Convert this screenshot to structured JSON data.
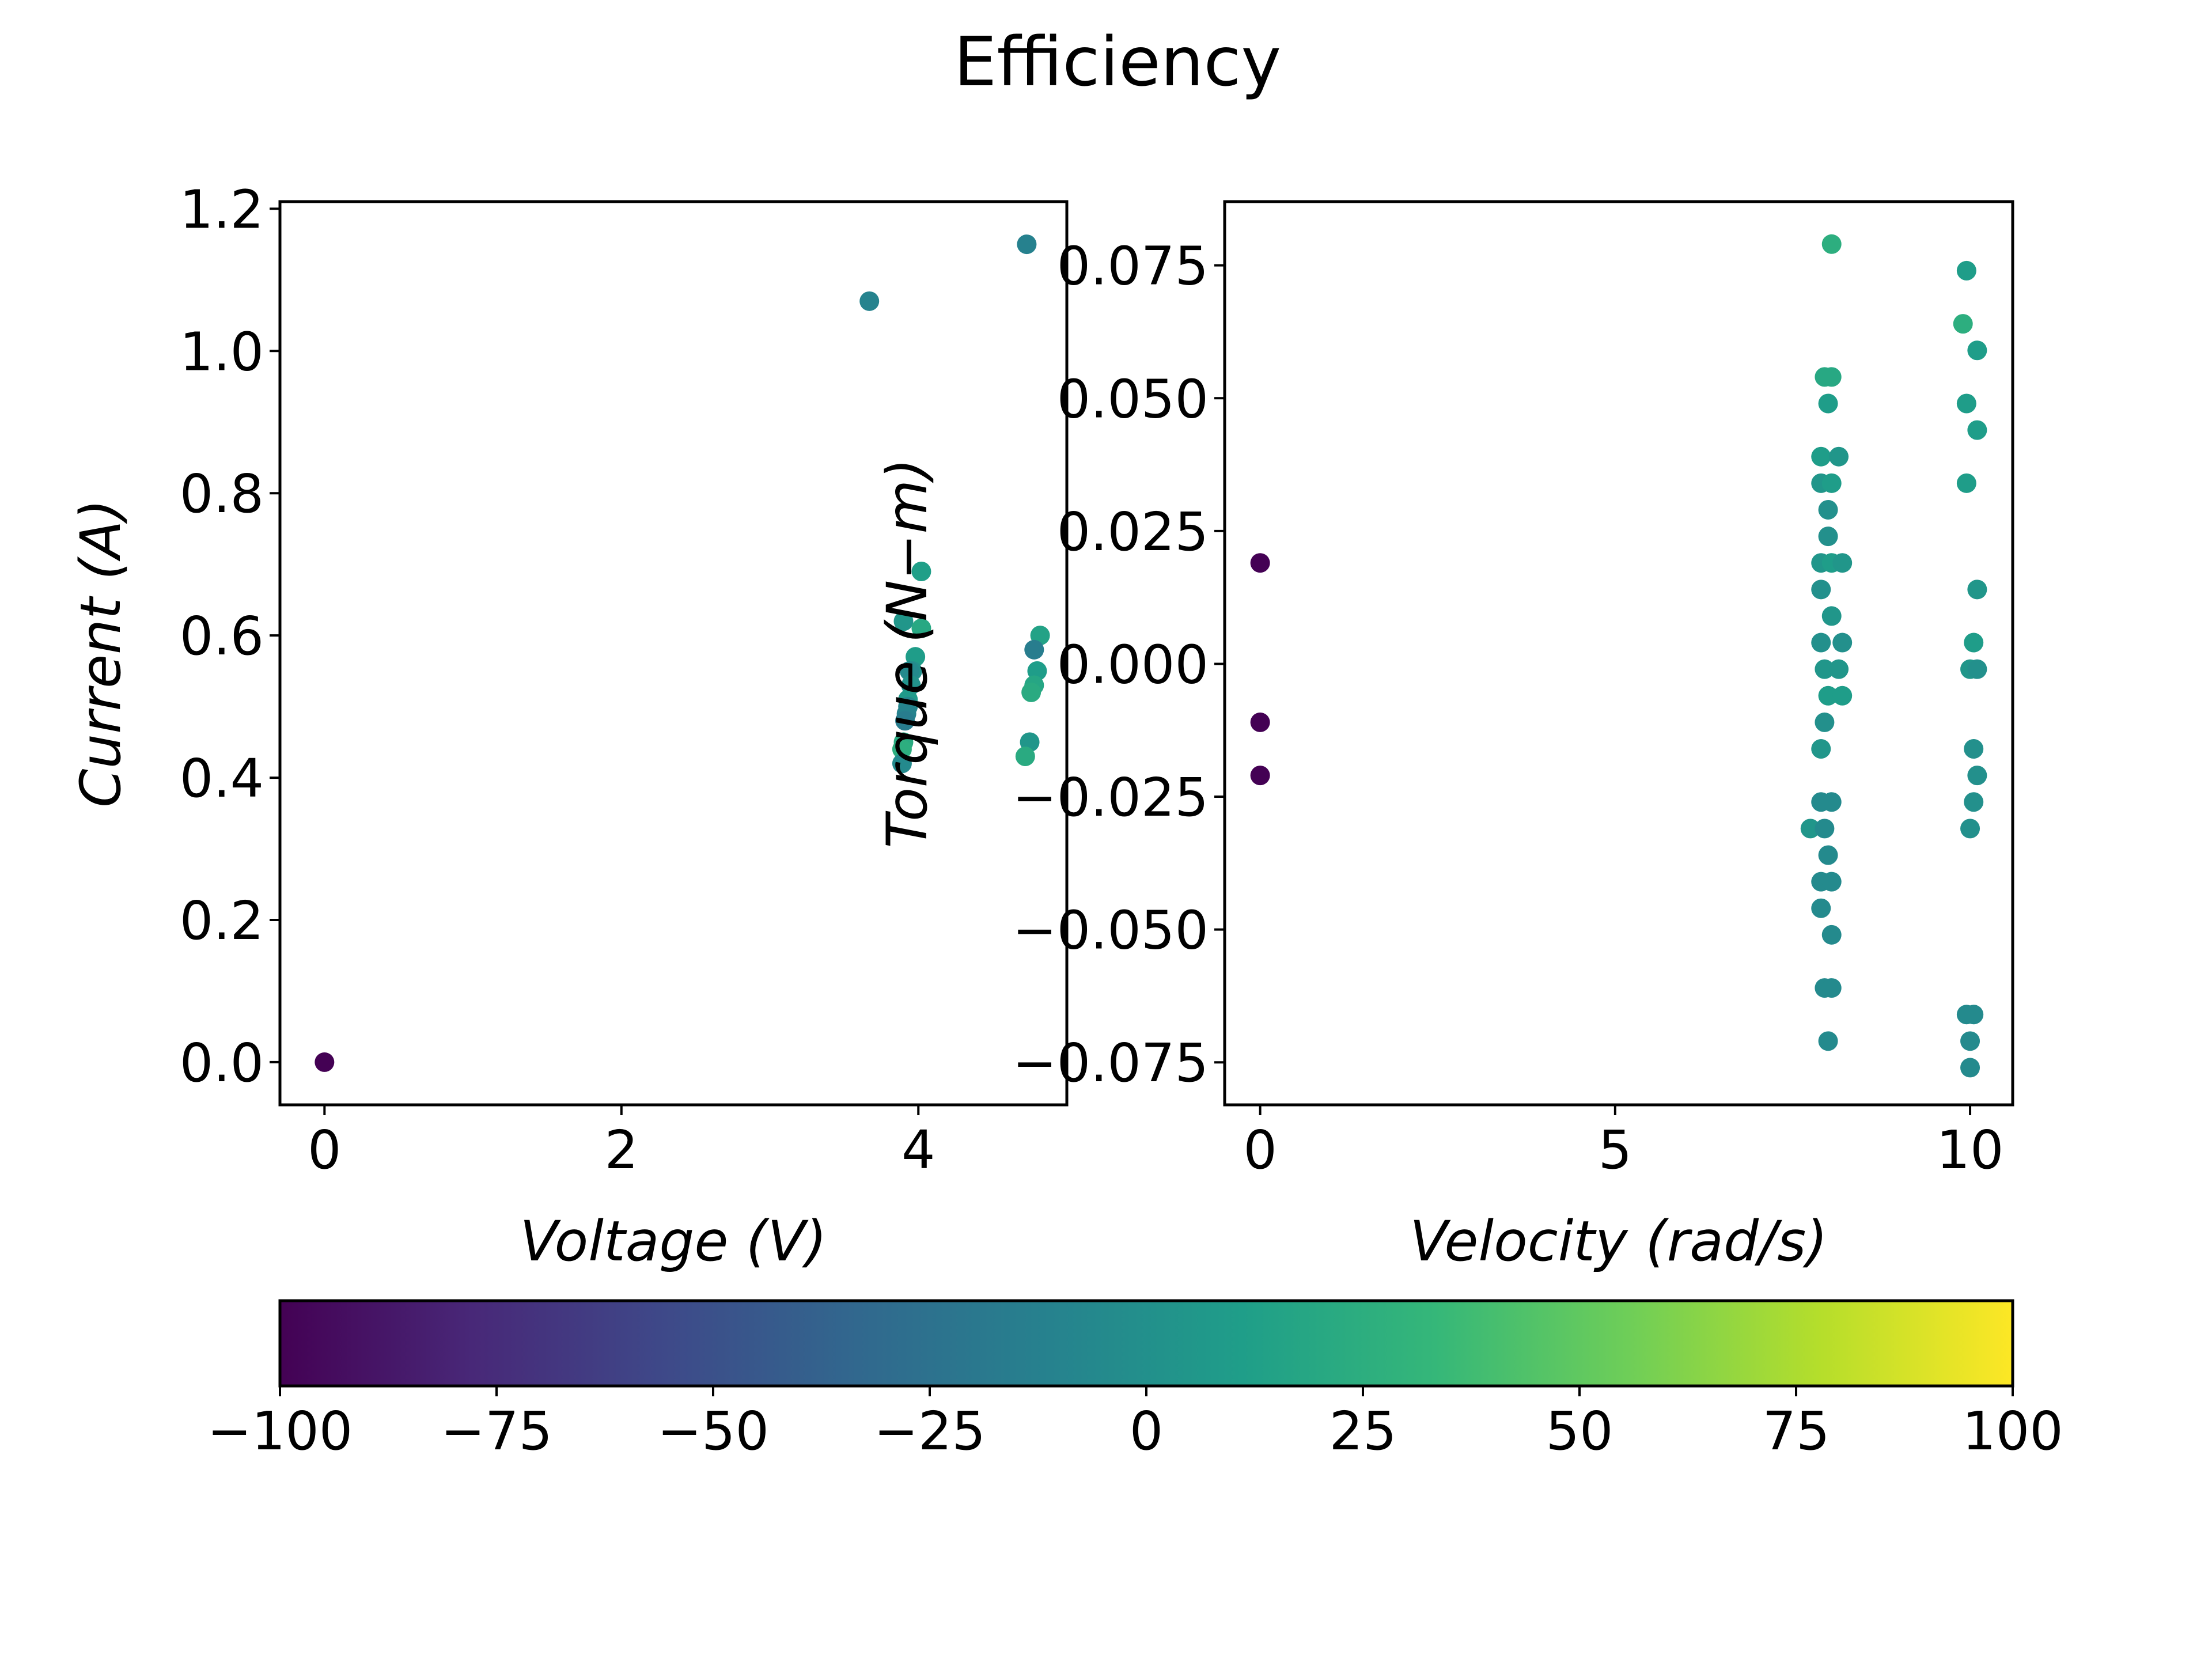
{
  "title": "Efficiency",
  "chart_data": [
    {
      "type": "scatter",
      "xlabel": "Voltage (V)",
      "ylabel": "Current (A)",
      "xlim": [
        -0.3,
        5.0
      ],
      "ylim": [
        -0.06,
        1.21
      ],
      "xticks": [
        "0",
        "2",
        "4"
      ],
      "yticks": [
        "0.0",
        "0.2",
        "0.4",
        "0.6",
        "0.8",
        "1.0",
        "1.2"
      ],
      "colormap": "viridis",
      "points": [
        {
          "x": 0.0,
          "y": 0.0,
          "c": -100
        },
        {
          "x": 3.67,
          "y": 1.07,
          "c": -10
        },
        {
          "x": 4.73,
          "y": 1.15,
          "c": -12
        },
        {
          "x": 3.9,
          "y": 0.62,
          "c": 5
        },
        {
          "x": 4.02,
          "y": 0.69,
          "c": 12
        },
        {
          "x": 4.02,
          "y": 0.61,
          "c": 20
        },
        {
          "x": 3.98,
          "y": 0.57,
          "c": 10
        },
        {
          "x": 3.96,
          "y": 0.55,
          "c": 0
        },
        {
          "x": 3.94,
          "y": 0.55,
          "c": -5
        },
        {
          "x": 3.95,
          "y": 0.53,
          "c": 2
        },
        {
          "x": 3.93,
          "y": 0.51,
          "c": 8
        },
        {
          "x": 3.93,
          "y": 0.5,
          "c": -8
        },
        {
          "x": 3.92,
          "y": 0.49,
          "c": -10
        },
        {
          "x": 3.91,
          "y": 0.48,
          "c": -15
        },
        {
          "x": 3.9,
          "y": 0.45,
          "c": 22
        },
        {
          "x": 3.89,
          "y": 0.44,
          "c": 25
        },
        {
          "x": 3.89,
          "y": 0.42,
          "c": -5
        },
        {
          "x": 4.82,
          "y": 0.6,
          "c": 15
        },
        {
          "x": 4.78,
          "y": 0.58,
          "c": -15
        },
        {
          "x": 4.8,
          "y": 0.55,
          "c": 10
        },
        {
          "x": 4.78,
          "y": 0.53,
          "c": 18
        },
        {
          "x": 4.76,
          "y": 0.52,
          "c": 22
        },
        {
          "x": 4.75,
          "y": 0.45,
          "c": 5
        },
        {
          "x": 4.72,
          "y": 0.43,
          "c": 22
        }
      ]
    },
    {
      "type": "scatter",
      "xlabel": "Velocity (rad/s)",
      "ylabel": "Torque (N−m)",
      "xlim": [
        -0.5,
        10.6
      ],
      "ylim": [
        -0.083,
        0.087
      ],
      "xticks": [
        "0",
        "5",
        "10"
      ],
      "yticks": [
        "−0.075",
        "−0.050",
        "−0.025",
        "0.000",
        "0.025",
        "0.050",
        "0.075"
      ],
      "colormap": "viridis",
      "points": [
        {
          "x": 0.0,
          "y": 0.019,
          "c": -100
        },
        {
          "x": 0.0,
          "y": -0.011,
          "c": -100
        },
        {
          "x": 0.0,
          "y": -0.021,
          "c": -100
        },
        {
          "x": 8.05,
          "y": 0.079,
          "c": 25
        },
        {
          "x": 7.95,
          "y": 0.054,
          "c": 20
        },
        {
          "x": 8.05,
          "y": 0.054,
          "c": 20
        },
        {
          "x": 8.0,
          "y": 0.049,
          "c": 10
        },
        {
          "x": 7.9,
          "y": 0.039,
          "c": 10
        },
        {
          "x": 8.15,
          "y": 0.039,
          "c": 5
        },
        {
          "x": 7.9,
          "y": 0.034,
          "c": 5
        },
        {
          "x": 8.05,
          "y": 0.034,
          "c": 10
        },
        {
          "x": 8.0,
          "y": 0.029,
          "c": 0
        },
        {
          "x": 8.0,
          "y": 0.024,
          "c": 0
        },
        {
          "x": 7.9,
          "y": 0.019,
          "c": 5
        },
        {
          "x": 8.05,
          "y": 0.019,
          "c": 10
        },
        {
          "x": 8.2,
          "y": 0.019,
          "c": 5
        },
        {
          "x": 7.9,
          "y": 0.014,
          "c": 0
        },
        {
          "x": 8.05,
          "y": 0.009,
          "c": 5
        },
        {
          "x": 7.9,
          "y": 0.004,
          "c": 0
        },
        {
          "x": 8.2,
          "y": 0.004,
          "c": 0
        },
        {
          "x": 7.95,
          "y": -0.001,
          "c": 5
        },
        {
          "x": 8.15,
          "y": -0.001,
          "c": 5
        },
        {
          "x": 8.0,
          "y": -0.006,
          "c": 10
        },
        {
          "x": 8.2,
          "y": -0.006,
          "c": 10
        },
        {
          "x": 7.95,
          "y": -0.011,
          "c": 0
        },
        {
          "x": 7.9,
          "y": -0.016,
          "c": 5
        },
        {
          "x": 7.9,
          "y": -0.026,
          "c": -5
        },
        {
          "x": 8.05,
          "y": -0.026,
          "c": -5
        },
        {
          "x": 7.75,
          "y": -0.031,
          "c": 5
        },
        {
          "x": 7.95,
          "y": -0.031,
          "c": -5
        },
        {
          "x": 8.0,
          "y": -0.036,
          "c": -5
        },
        {
          "x": 7.9,
          "y": -0.041,
          "c": -5
        },
        {
          "x": 8.05,
          "y": -0.041,
          "c": -5
        },
        {
          "x": 7.9,
          "y": -0.046,
          "c": -5
        },
        {
          "x": 8.05,
          "y": -0.051,
          "c": -5
        },
        {
          "x": 7.95,
          "y": -0.061,
          "c": -5
        },
        {
          "x": 8.05,
          "y": -0.061,
          "c": -5
        },
        {
          "x": 8.0,
          "y": -0.071,
          "c": -5
        },
        {
          "x": 9.95,
          "y": 0.074,
          "c": 10
        },
        {
          "x": 9.9,
          "y": 0.064,
          "c": 25
        },
        {
          "x": 10.1,
          "y": 0.059,
          "c": 10
        },
        {
          "x": 9.95,
          "y": 0.049,
          "c": 10
        },
        {
          "x": 10.1,
          "y": 0.044,
          "c": 10
        },
        {
          "x": 9.95,
          "y": 0.034,
          "c": 10
        },
        {
          "x": 10.1,
          "y": 0.014,
          "c": 5
        },
        {
          "x": 10.05,
          "y": 0.004,
          "c": 10
        },
        {
          "x": 10.0,
          "y": -0.001,
          "c": 5
        },
        {
          "x": 10.1,
          "y": -0.001,
          "c": 0
        },
        {
          "x": 10.05,
          "y": -0.016,
          "c": 0
        },
        {
          "x": 10.1,
          "y": -0.021,
          "c": 0
        },
        {
          "x": 10.05,
          "y": -0.026,
          "c": 0
        },
        {
          "x": 10.0,
          "y": -0.031,
          "c": 0
        },
        {
          "x": 9.95,
          "y": -0.066,
          "c": -5
        },
        {
          "x": 10.05,
          "y": -0.066,
          "c": -5
        },
        {
          "x": 10.0,
          "y": -0.071,
          "c": -5
        },
        {
          "x": 10.0,
          "y": -0.076,
          "c": -5
        }
      ]
    }
  ],
  "colorbar": {
    "colormap": "viridis",
    "range": [
      -100,
      100
    ],
    "ticks": [
      "−100",
      "−75",
      "−50",
      "−25",
      "0",
      "25",
      "50",
      "75",
      "100"
    ],
    "colors": [
      "#440154",
      "#482878",
      "#3e4989",
      "#31688e",
      "#26828e",
      "#1f9e89",
      "#35b779",
      "#6ece58",
      "#b5de2b",
      "#fde725"
    ]
  }
}
